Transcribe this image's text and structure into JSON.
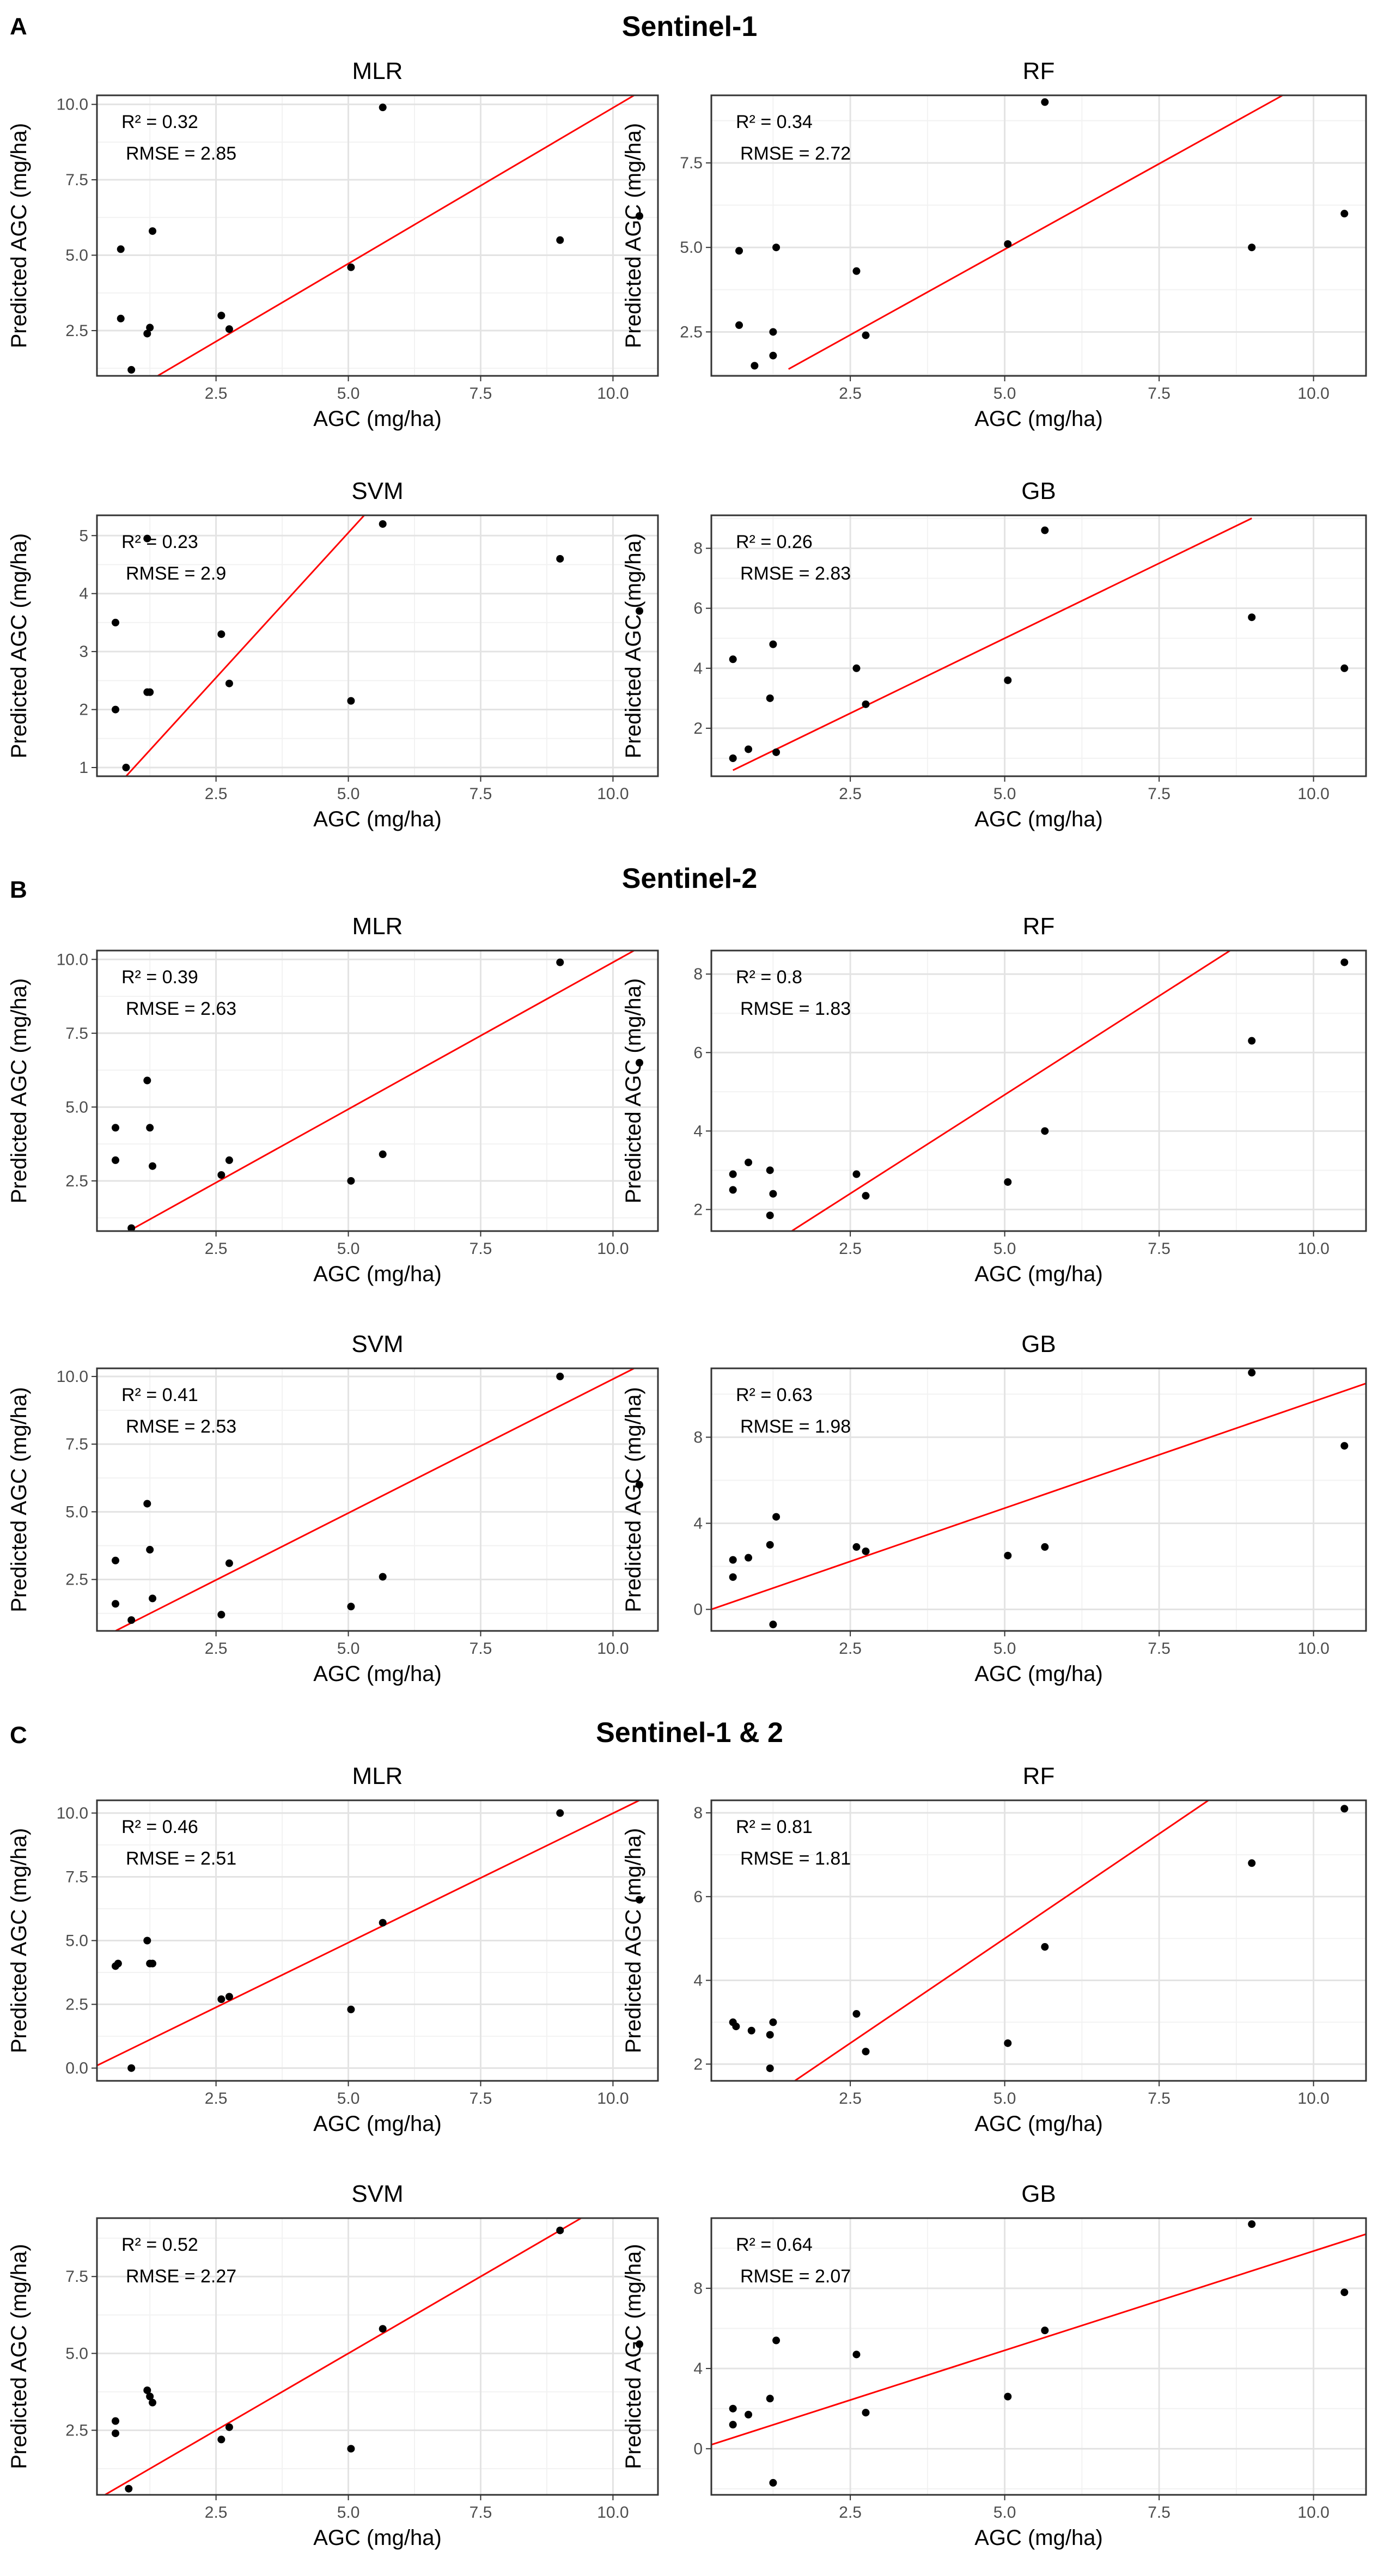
{
  "figure": {
    "sections": [
      {
        "letter": "A",
        "title": "Sentinel-1"
      },
      {
        "letter": "B",
        "title": "Sentinel-2"
      },
      {
        "letter": "C",
        "title": "Sentinel-1 & 2"
      }
    ],
    "line_color": "#ff0000",
    "point_color": "#000000"
  },
  "chart_data": [
    {
      "type": "scatter",
      "section": "A",
      "title": "MLR",
      "xlabel": "AGC (mg/ha)",
      "ylabel": "Predicted AGC (mg/ha)",
      "xlim": [
        0.25,
        10.85
      ],
      "ylim": [
        1.0,
        10.3
      ],
      "xticks": [
        2.5,
        5.0,
        7.5,
        10.0
      ],
      "yticks": [
        2.5,
        5.0,
        7.5,
        10.0
      ],
      "annotations": [
        "R² = 0.32",
        "RMSE = 2.85"
      ],
      "points": [
        [
          0.7,
          5.2
        ],
        [
          0.7,
          2.9
        ],
        [
          0.9,
          1.2
        ],
        [
          1.2,
          2.4
        ],
        [
          1.25,
          2.6
        ],
        [
          1.3,
          5.8
        ],
        [
          2.6,
          3.0
        ],
        [
          2.75,
          2.55
        ],
        [
          5.05,
          4.6
        ],
        [
          5.65,
          9.9
        ],
        [
          9.0,
          5.5
        ],
        [
          10.5,
          6.3
        ]
      ],
      "line": [
        [
          1.3,
          0.9
        ],
        [
          10.4,
          10.3
        ]
      ]
    },
    {
      "type": "scatter",
      "section": "A",
      "title": "RF",
      "xlabel": "AGC (mg/ha)",
      "ylabel": "Predicted AGC (mg/ha)",
      "xlim": [
        0.25,
        10.85
      ],
      "ylim": [
        1.2,
        9.5
      ],
      "xticks": [
        2.5,
        5.0,
        7.5,
        10.0
      ],
      "yticks": [
        2.5,
        5.0,
        7.5
      ],
      "annotations": [
        "R² = 0.34",
        "RMSE = 2.72"
      ],
      "points": [
        [
          0.7,
          4.9
        ],
        [
          0.7,
          2.7
        ],
        [
          0.95,
          1.5
        ],
        [
          1.25,
          1.8
        ],
        [
          1.25,
          2.5
        ],
        [
          1.3,
          5.0
        ],
        [
          2.6,
          4.3
        ],
        [
          2.75,
          2.4
        ],
        [
          5.05,
          5.1
        ],
        [
          5.65,
          9.3
        ],
        [
          9.0,
          5.0
        ],
        [
          10.5,
          6.0
        ]
      ],
      "line": [
        [
          1.5,
          1.4
        ],
        [
          9.5,
          9.5
        ]
      ]
    },
    {
      "type": "scatter",
      "section": "A",
      "title": "SVM",
      "xlabel": "AGC (mg/ha)",
      "ylabel": "Predicted AGC (mg/ha)",
      "xlim": [
        0.25,
        10.85
      ],
      "ylim": [
        0.85,
        5.35
      ],
      "xticks": [
        2.5,
        5.0,
        7.5,
        10.0
      ],
      "yticks": [
        1,
        2,
        3,
        4,
        5
      ],
      "annotations": [
        "R² = 0.23",
        "RMSE = 2.9"
      ],
      "points": [
        [
          0.6,
          3.5
        ],
        [
          0.6,
          2.0
        ],
        [
          0.8,
          1.0
        ],
        [
          1.2,
          2.3
        ],
        [
          1.25,
          2.3
        ],
        [
          1.2,
          4.95
        ],
        [
          2.6,
          3.3
        ],
        [
          2.75,
          2.45
        ],
        [
          5.05,
          2.15
        ],
        [
          5.65,
          5.2
        ],
        [
          9.0,
          4.6
        ],
        [
          10.5,
          3.7
        ]
      ],
      "line": [
        [
          0.8,
          0.85
        ],
        [
          5.3,
          5.35
        ]
      ]
    },
    {
      "type": "scatter",
      "section": "A",
      "title": "GB",
      "xlabel": "AGC (mg/ha)",
      "ylabel": "Predicted AGC (mg/ha)",
      "xlim": [
        0.25,
        10.85
      ],
      "ylim": [
        0.4,
        9.1
      ],
      "xticks": [
        2.5,
        5.0,
        7.5,
        10.0
      ],
      "yticks": [
        2,
        4,
        6,
        8
      ],
      "annotations": [
        "R² = 0.26",
        "RMSE = 2.83"
      ],
      "points": [
        [
          0.6,
          4.3
        ],
        [
          0.6,
          1.0
        ],
        [
          0.85,
          1.3
        ],
        [
          1.2,
          3.0
        ],
        [
          1.25,
          4.8
        ],
        [
          1.3,
          1.2
        ],
        [
          2.6,
          4.0
        ],
        [
          2.75,
          2.8
        ],
        [
          5.05,
          3.6
        ],
        [
          5.65,
          8.6
        ],
        [
          9.0,
          5.7
        ],
        [
          10.5,
          4.0
        ]
      ],
      "line": [
        [
          0.6,
          0.6
        ],
        [
          9.0,
          9.0
        ]
      ]
    },
    {
      "type": "scatter",
      "section": "B",
      "title": "MLR",
      "xlabel": "AGC (mg/ha)",
      "ylabel": "Predicted AGC (mg/ha)",
      "xlim": [
        0.25,
        10.85
      ],
      "ylim": [
        0.8,
        10.3
      ],
      "xticks": [
        2.5,
        5.0,
        7.5,
        10.0
      ],
      "yticks": [
        2.5,
        5.0,
        7.5,
        10.0
      ],
      "annotations": [
        "R² = 0.39",
        "RMSE = 2.63"
      ],
      "points": [
        [
          0.6,
          4.3
        ],
        [
          0.6,
          3.2
        ],
        [
          0.9,
          0.9
        ],
        [
          1.2,
          5.9
        ],
        [
          1.25,
          4.3
        ],
        [
          1.3,
          3.0
        ],
        [
          2.6,
          2.7
        ],
        [
          2.75,
          3.2
        ],
        [
          5.05,
          2.5
        ],
        [
          5.65,
          3.4
        ],
        [
          9.0,
          9.9
        ],
        [
          10.5,
          6.5
        ]
      ],
      "line": [
        [
          0.9,
          0.85
        ],
        [
          10.4,
          10.3
        ]
      ]
    },
    {
      "type": "scatter",
      "section": "B",
      "title": "RF",
      "xlabel": "AGC (mg/ha)",
      "ylabel": "Predicted AGC (mg/ha)",
      "xlim": [
        0.25,
        10.85
      ],
      "ylim": [
        1.45,
        8.6
      ],
      "xticks": [
        2.5,
        5.0,
        7.5,
        10.0
      ],
      "yticks": [
        2,
        4,
        6,
        8
      ],
      "annotations": [
        "R² = 0.8",
        "RMSE = 1.83"
      ],
      "points": [
        [
          0.6,
          2.9
        ],
        [
          0.6,
          2.5
        ],
        [
          0.85,
          3.2
        ],
        [
          1.2,
          3.0
        ],
        [
          1.25,
          2.4
        ],
        [
          1.2,
          1.85
        ],
        [
          2.6,
          2.9
        ],
        [
          2.75,
          2.35
        ],
        [
          5.05,
          2.7
        ],
        [
          5.65,
          4.0
        ],
        [
          9.0,
          6.3
        ],
        [
          10.5,
          8.3
        ]
      ],
      "line": [
        [
          1.55,
          1.45
        ],
        [
          8.65,
          8.6
        ]
      ]
    },
    {
      "type": "scatter",
      "section": "B",
      "title": "SVM",
      "xlabel": "AGC (mg/ha)",
      "ylabel": "Predicted AGC (mg/ha)",
      "xlim": [
        0.25,
        10.85
      ],
      "ylim": [
        0.6,
        10.3
      ],
      "xticks": [
        2.5,
        5.0,
        7.5,
        10.0
      ],
      "yticks": [
        2.5,
        5.0,
        7.5,
        10.0
      ],
      "annotations": [
        "R² = 0.41",
        "RMSE = 2.53"
      ],
      "points": [
        [
          0.6,
          3.2
        ],
        [
          0.6,
          1.6
        ],
        [
          0.9,
          1.0
        ],
        [
          1.2,
          5.3
        ],
        [
          1.25,
          3.6
        ],
        [
          1.3,
          1.8
        ],
        [
          2.6,
          1.2
        ],
        [
          2.75,
          3.1
        ],
        [
          5.05,
          1.5
        ],
        [
          5.65,
          2.6
        ],
        [
          9.0,
          10.0
        ],
        [
          10.5,
          6.0
        ]
      ],
      "line": [
        [
          0.6,
          0.6
        ],
        [
          10.4,
          10.3
        ]
      ]
    },
    {
      "type": "scatter",
      "section": "B",
      "title": "GB",
      "xlabel": "AGC (mg/ha)",
      "ylabel": "Predicted AGC (mg/ha)",
      "xlim": [
        0.25,
        10.85
      ],
      "ylim": [
        -1.0,
        11.2
      ],
      "xticks": [
        2.5,
        5.0,
        7.5,
        10.0
      ],
      "yticks": [
        0,
        4,
        8
      ],
      "annotations": [
        "R² = 0.63",
        "RMSE = 1.98"
      ],
      "points": [
        [
          0.6,
          2.3
        ],
        [
          0.6,
          1.5
        ],
        [
          0.85,
          2.4
        ],
        [
          1.2,
          3.0
        ],
        [
          1.3,
          4.3
        ],
        [
          1.25,
          -0.7
        ],
        [
          2.6,
          2.9
        ],
        [
          2.75,
          2.7
        ],
        [
          5.05,
          2.5
        ],
        [
          5.65,
          2.9
        ],
        [
          9.0,
          11.0
        ],
        [
          10.5,
          7.6
        ]
      ],
      "line": [
        [
          0.25,
          0.0
        ],
        [
          10.85,
          10.5
        ]
      ]
    },
    {
      "type": "scatter",
      "section": "C",
      "title": "MLR",
      "xlabel": "AGC (mg/ha)",
      "ylabel": "Predicted AGC (mg/ha)",
      "xlim": [
        0.25,
        10.85
      ],
      "ylim": [
        -0.5,
        10.5
      ],
      "xticks": [
        2.5,
        5.0,
        7.5,
        10.0
      ],
      "yticks": [
        0.0,
        2.5,
        5.0,
        7.5,
        10.0
      ],
      "annotations": [
        "R² = 0.46",
        "RMSE = 2.51"
      ],
      "points": [
        [
          0.6,
          4.0
        ],
        [
          0.65,
          4.1
        ],
        [
          0.9,
          0.0
        ],
        [
          1.2,
          5.0
        ],
        [
          1.25,
          4.1
        ],
        [
          1.3,
          4.1
        ],
        [
          2.6,
          2.7
        ],
        [
          2.75,
          2.8
        ],
        [
          5.05,
          2.3
        ],
        [
          5.65,
          5.7
        ],
        [
          9.0,
          10.0
        ],
        [
          10.5,
          6.6
        ]
      ],
      "line": [
        [
          0.25,
          0.1
        ],
        [
          10.5,
          10.5
        ]
      ]
    },
    {
      "type": "scatter",
      "section": "C",
      "title": "RF",
      "xlabel": "AGC (mg/ha)",
      "ylabel": "Predicted AGC (mg/ha)",
      "xlim": [
        0.25,
        10.85
      ],
      "ylim": [
        1.6,
        8.3
      ],
      "xticks": [
        2.5,
        5.0,
        7.5,
        10.0
      ],
      "yticks": [
        2,
        4,
        6,
        8
      ],
      "annotations": [
        "R² = 0.81",
        "RMSE = 1.81"
      ],
      "points": [
        [
          0.6,
          3.0
        ],
        [
          0.65,
          2.9
        ],
        [
          0.9,
          2.8
        ],
        [
          1.2,
          2.7
        ],
        [
          1.25,
          3.0
        ],
        [
          1.2,
          1.9
        ],
        [
          2.6,
          3.2
        ],
        [
          2.75,
          2.3
        ],
        [
          5.05,
          2.5
        ],
        [
          5.65,
          4.8
        ],
        [
          9.0,
          6.8
        ],
        [
          10.5,
          8.1
        ]
      ],
      "line": [
        [
          1.6,
          1.6
        ],
        [
          8.3,
          8.3
        ]
      ]
    },
    {
      "type": "scatter",
      "section": "C",
      "title": "SVM",
      "xlabel": "AGC (mg/ha)",
      "ylabel": "Predicted AGC (mg/ha)",
      "xlim": [
        0.25,
        10.85
      ],
      "ylim": [
        0.4,
        9.4
      ],
      "xticks": [
        2.5,
        5.0,
        7.5,
        10.0
      ],
      "yticks": [
        2.5,
        5.0,
        7.5
      ],
      "annotations": [
        "R² = 0.52",
        "RMSE = 2.27"
      ],
      "points": [
        [
          0.6,
          2.8
        ],
        [
          0.6,
          2.4
        ],
        [
          0.85,
          0.6
        ],
        [
          1.2,
          3.8
        ],
        [
          1.25,
          3.6
        ],
        [
          1.3,
          3.4
        ],
        [
          2.6,
          2.2
        ],
        [
          2.75,
          2.6
        ],
        [
          5.05,
          1.9
        ],
        [
          5.65,
          5.8
        ],
        [
          9.0,
          9.0
        ],
        [
          10.5,
          5.3
        ]
      ],
      "line": [
        [
          0.4,
          0.4
        ],
        [
          9.4,
          9.4
        ]
      ]
    },
    {
      "type": "scatter",
      "section": "C",
      "title": "GB",
      "xlabel": "AGC (mg/ha)",
      "ylabel": "Predicted AGC (mg/ha)",
      "xlim": [
        0.25,
        10.85
      ],
      "ylim": [
        -2.3,
        11.5
      ],
      "xticks": [
        2.5,
        5.0,
        7.5,
        10.0
      ],
      "yticks": [
        0,
        4,
        8
      ],
      "annotations": [
        "R² = 0.64",
        "RMSE = 2.07"
      ],
      "points": [
        [
          0.6,
          2.0
        ],
        [
          0.6,
          1.2
        ],
        [
          0.85,
          1.7
        ],
        [
          1.2,
          2.5
        ],
        [
          1.3,
          5.4
        ],
        [
          1.25,
          -1.7
        ],
        [
          2.6,
          4.7
        ],
        [
          2.75,
          1.8
        ],
        [
          5.05,
          2.6
        ],
        [
          5.65,
          5.9
        ],
        [
          9.0,
          11.2
        ],
        [
          10.5,
          7.8
        ]
      ],
      "line": [
        [
          0.25,
          0.2
        ],
        [
          10.85,
          10.7
        ]
      ]
    }
  ]
}
